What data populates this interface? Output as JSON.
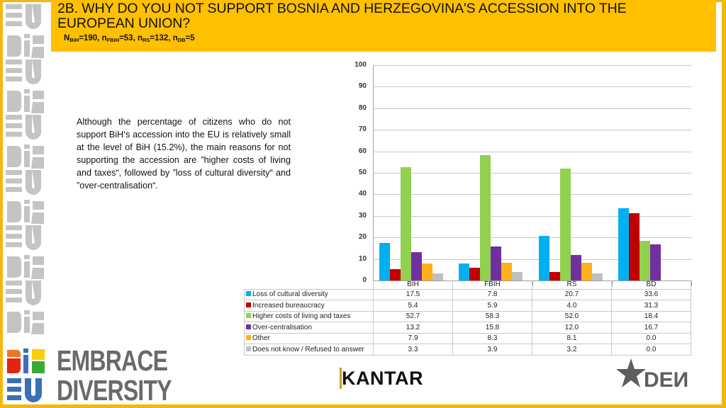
{
  "header": {
    "title_line1": "2B. WHY DO YOU NOT SUPPORT BOSNIA AND HERZEGOVINA'S ACCESSION INTO THE",
    "title_line2": "EUROPEAN UNION?",
    "sample": [
      {
        "label": "N",
        "sub": "BiH",
        "value": "=190, "
      },
      {
        "label": "n",
        "sub": "FBiH",
        "value": "=53, "
      },
      {
        "label": "n",
        "sub": "RS",
        "value": "=132, "
      },
      {
        "label": "n",
        "sub": "DB",
        "value": "=5"
      }
    ]
  },
  "body_text": "Although the percentage of citizens who do not support BiH‘s accession into the EU is relatively small at the level of BiH (15.2%), the main reasons for not supporting the accession are ”higher costs of living and taxes“, followed by ”loss of cultural diversity“ and ”over-centralisation“.",
  "colors": {
    "header_bg": "#ffc000",
    "frame": "#f5b70f",
    "series": [
      "#00b0f0",
      "#c00000",
      "#92d050",
      "#7030a0",
      "#ffb118",
      "#c0c0c0"
    ]
  },
  "chart_data": {
    "type": "bar",
    "title": "2B. WHY DO YOU NOT SUPPORT BOSNIA AND HERZEGOVINA'S ACCESSION INTO THE EUROPEAN UNION?",
    "xlabel": "",
    "ylabel": "",
    "ylim": [
      0,
      100
    ],
    "yticks": [
      0,
      10,
      20,
      30,
      40,
      50,
      60,
      70,
      80,
      90,
      100
    ],
    "grid": true,
    "legend_position": "data-table",
    "categories": [
      "BIH",
      "FBIH",
      "RS",
      "BD"
    ],
    "series": [
      {
        "name": "Loss of cultural diversity",
        "color": "#00b0f0",
        "values": [
          17.5,
          7.8,
          20.7,
          33.6
        ]
      },
      {
        "name": "Increased bureaucracy",
        "color": "#c00000",
        "values": [
          5.4,
          5.9,
          4.0,
          31.3
        ]
      },
      {
        "name": "Higher costs of living and taxes",
        "color": "#92d050",
        "values": [
          52.7,
          58.3,
          52.0,
          18.4
        ]
      },
      {
        "name": "Over-centralisation",
        "color": "#7030a0",
        "values": [
          13.2,
          15.8,
          12.0,
          16.7
        ]
      },
      {
        "name": "Other",
        "color": "#ffb118",
        "values": [
          7.9,
          8.3,
          8.1,
          0.0
        ]
      },
      {
        "name": "Does not know / Refused to answer",
        "color": "#c0c0c0",
        "values": [
          3.3,
          3.9,
          3.2,
          0.0
        ]
      }
    ]
  },
  "table": {
    "rows": [
      {
        "label": "Loss of cultural diversity",
        "cells": [
          "17.5",
          "7.8",
          "20.7",
          "33.6"
        ]
      },
      {
        "label": "Increased bureaucracy",
        "cells": [
          "5.4",
          "5.9",
          "4.0",
          "31.3"
        ]
      },
      {
        "label": "Higher costs of living and taxes",
        "cells": [
          "52.7",
          "58.3",
          "52.0",
          "18.4"
        ]
      },
      {
        "label": "Over-centralisation",
        "cells": [
          "13.2",
          "15.8",
          "12.0",
          "16.7"
        ]
      },
      {
        "label": "Other",
        "cells": [
          "7.9",
          "8.3",
          "8.1",
          "0.0"
        ]
      },
      {
        "label": "Does not know / Refused to answer",
        "cells": [
          "3.3",
          "3.9",
          "3.2",
          "0.0"
        ]
      }
    ]
  },
  "logos": {
    "embrace_line1": "EMBRACE",
    "embrace_line2": "DIVERSITY",
    "kantar_k": "K",
    "kantar_rest": "ANTAR",
    "den": "DEN"
  }
}
